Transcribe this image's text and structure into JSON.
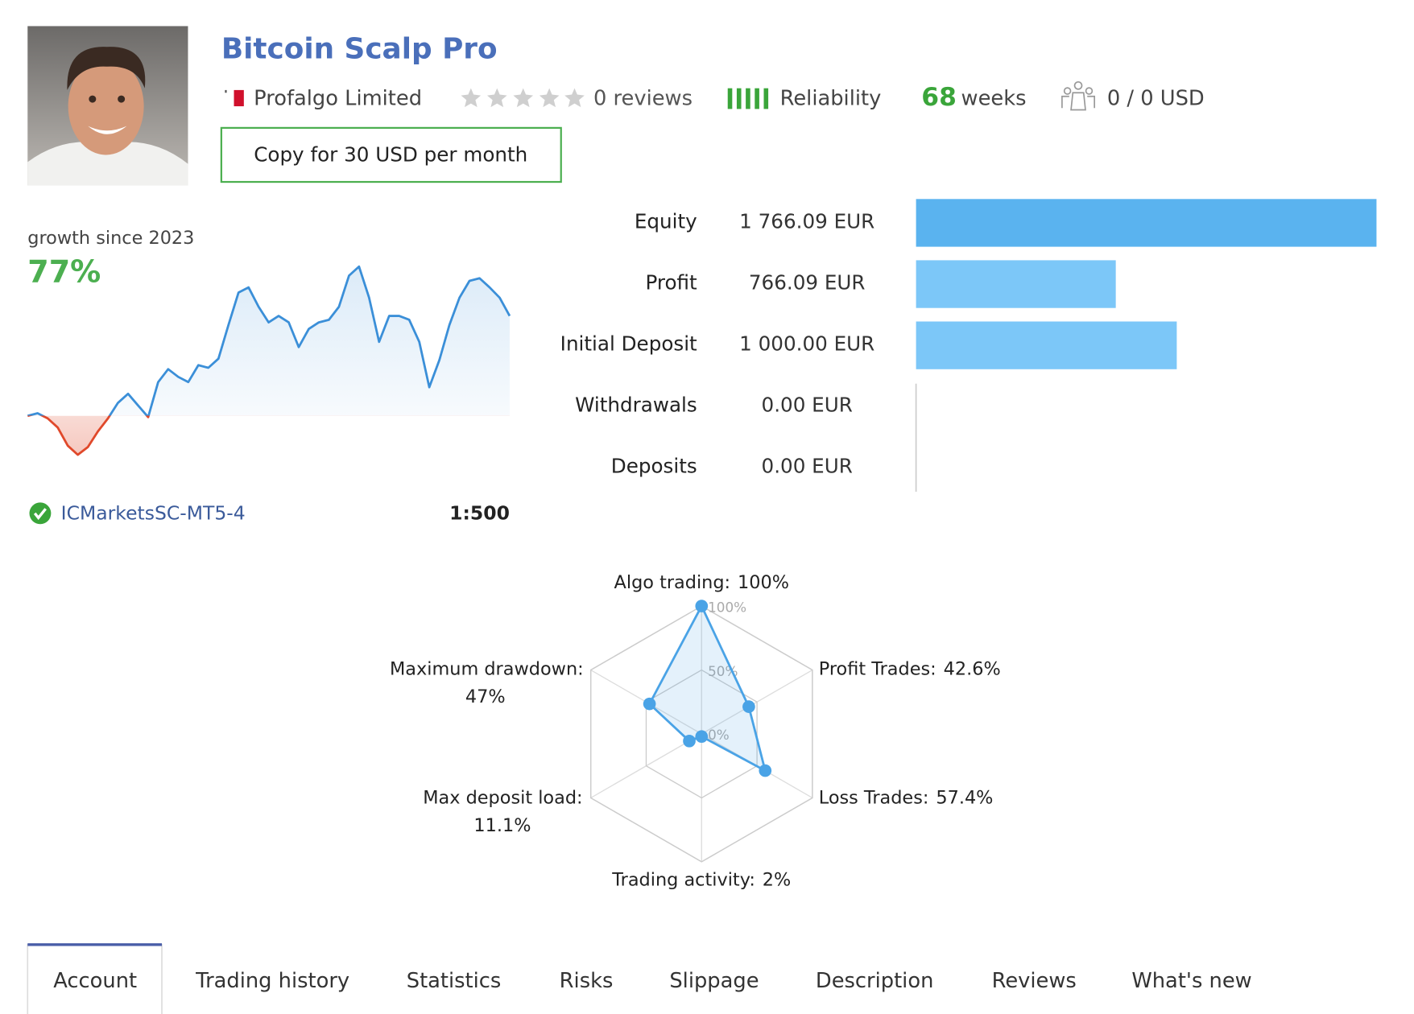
{
  "header": {
    "title": "Bitcoin Scalp Pro",
    "author": "Profalgo Limited",
    "reviews": "0 reviews",
    "reliability": "Reliability",
    "weeks_value": "68",
    "weeks_unit": "weeks",
    "subscribers": "0 / 0 USD",
    "copy_button": "Copy for 30 USD per month"
  },
  "account": {
    "server": "ICMarketsSC-MT5-4",
    "leverage": "1:500"
  },
  "tabs": [
    "Account",
    "Trading history",
    "Statistics",
    "Risks",
    "Slippage",
    "Description",
    "Reviews",
    "What's new"
  ],
  "chart_data": [
    {
      "type": "line",
      "title": "growth since 2023",
      "subtitle": "77%",
      "color": "#3b8fd8",
      "negative_color": "#e0492b",
      "values": [
        0,
        2,
        -2,
        -9,
        -23,
        -30,
        -24,
        -12,
        -2,
        10,
        17,
        8,
        -1,
        26,
        36,
        30,
        26,
        39,
        37,
        44,
        70,
        95,
        99,
        84,
        72,
        77,
        72,
        53,
        67,
        72,
        74,
        84,
        108,
        115,
        91,
        57,
        77,
        77,
        74,
        57,
        22,
        43,
        70,
        91,
        104,
        106,
        99,
        91,
        77
      ]
    },
    {
      "type": "bar",
      "categories": [
        "Equity",
        "Profit",
        "Initial Deposit",
        "Withdrawals",
        "Deposits"
      ],
      "values": [
        1766.09,
        766.09,
        1000,
        0,
        0
      ],
      "value_labels": [
        "1 766.09 EUR",
        "766.09 EUR",
        "1 000.00 EUR",
        "0.00 EUR",
        "0.00 EUR"
      ],
      "colors": [
        "#5ab3ef",
        "#7cc7f8",
        "#7cc7f8",
        "#7cc7f8",
        "#7cc7f8"
      ]
    },
    {
      "type": "radar",
      "categories": [
        "Algo trading:",
        "Profit Trades:",
        "Loss Trades:",
        "Trading activity:",
        "Max deposit load:",
        "Maximum drawdown:"
      ],
      "values": [
        100,
        42.6,
        57.4,
        2,
        11.1,
        47
      ],
      "value_labels": [
        "100%",
        "42.6%",
        "57.4%",
        "2%",
        "11.1%",
        "47%"
      ],
      "rlim": [
        0,
        100
      ],
      "rticks": [
        {
          "value": 0,
          "label": "0%"
        },
        {
          "value": 50,
          "label": "50%"
        },
        {
          "value": 100,
          "label": "100%"
        }
      ],
      "color": "#4aa3e6"
    }
  ]
}
